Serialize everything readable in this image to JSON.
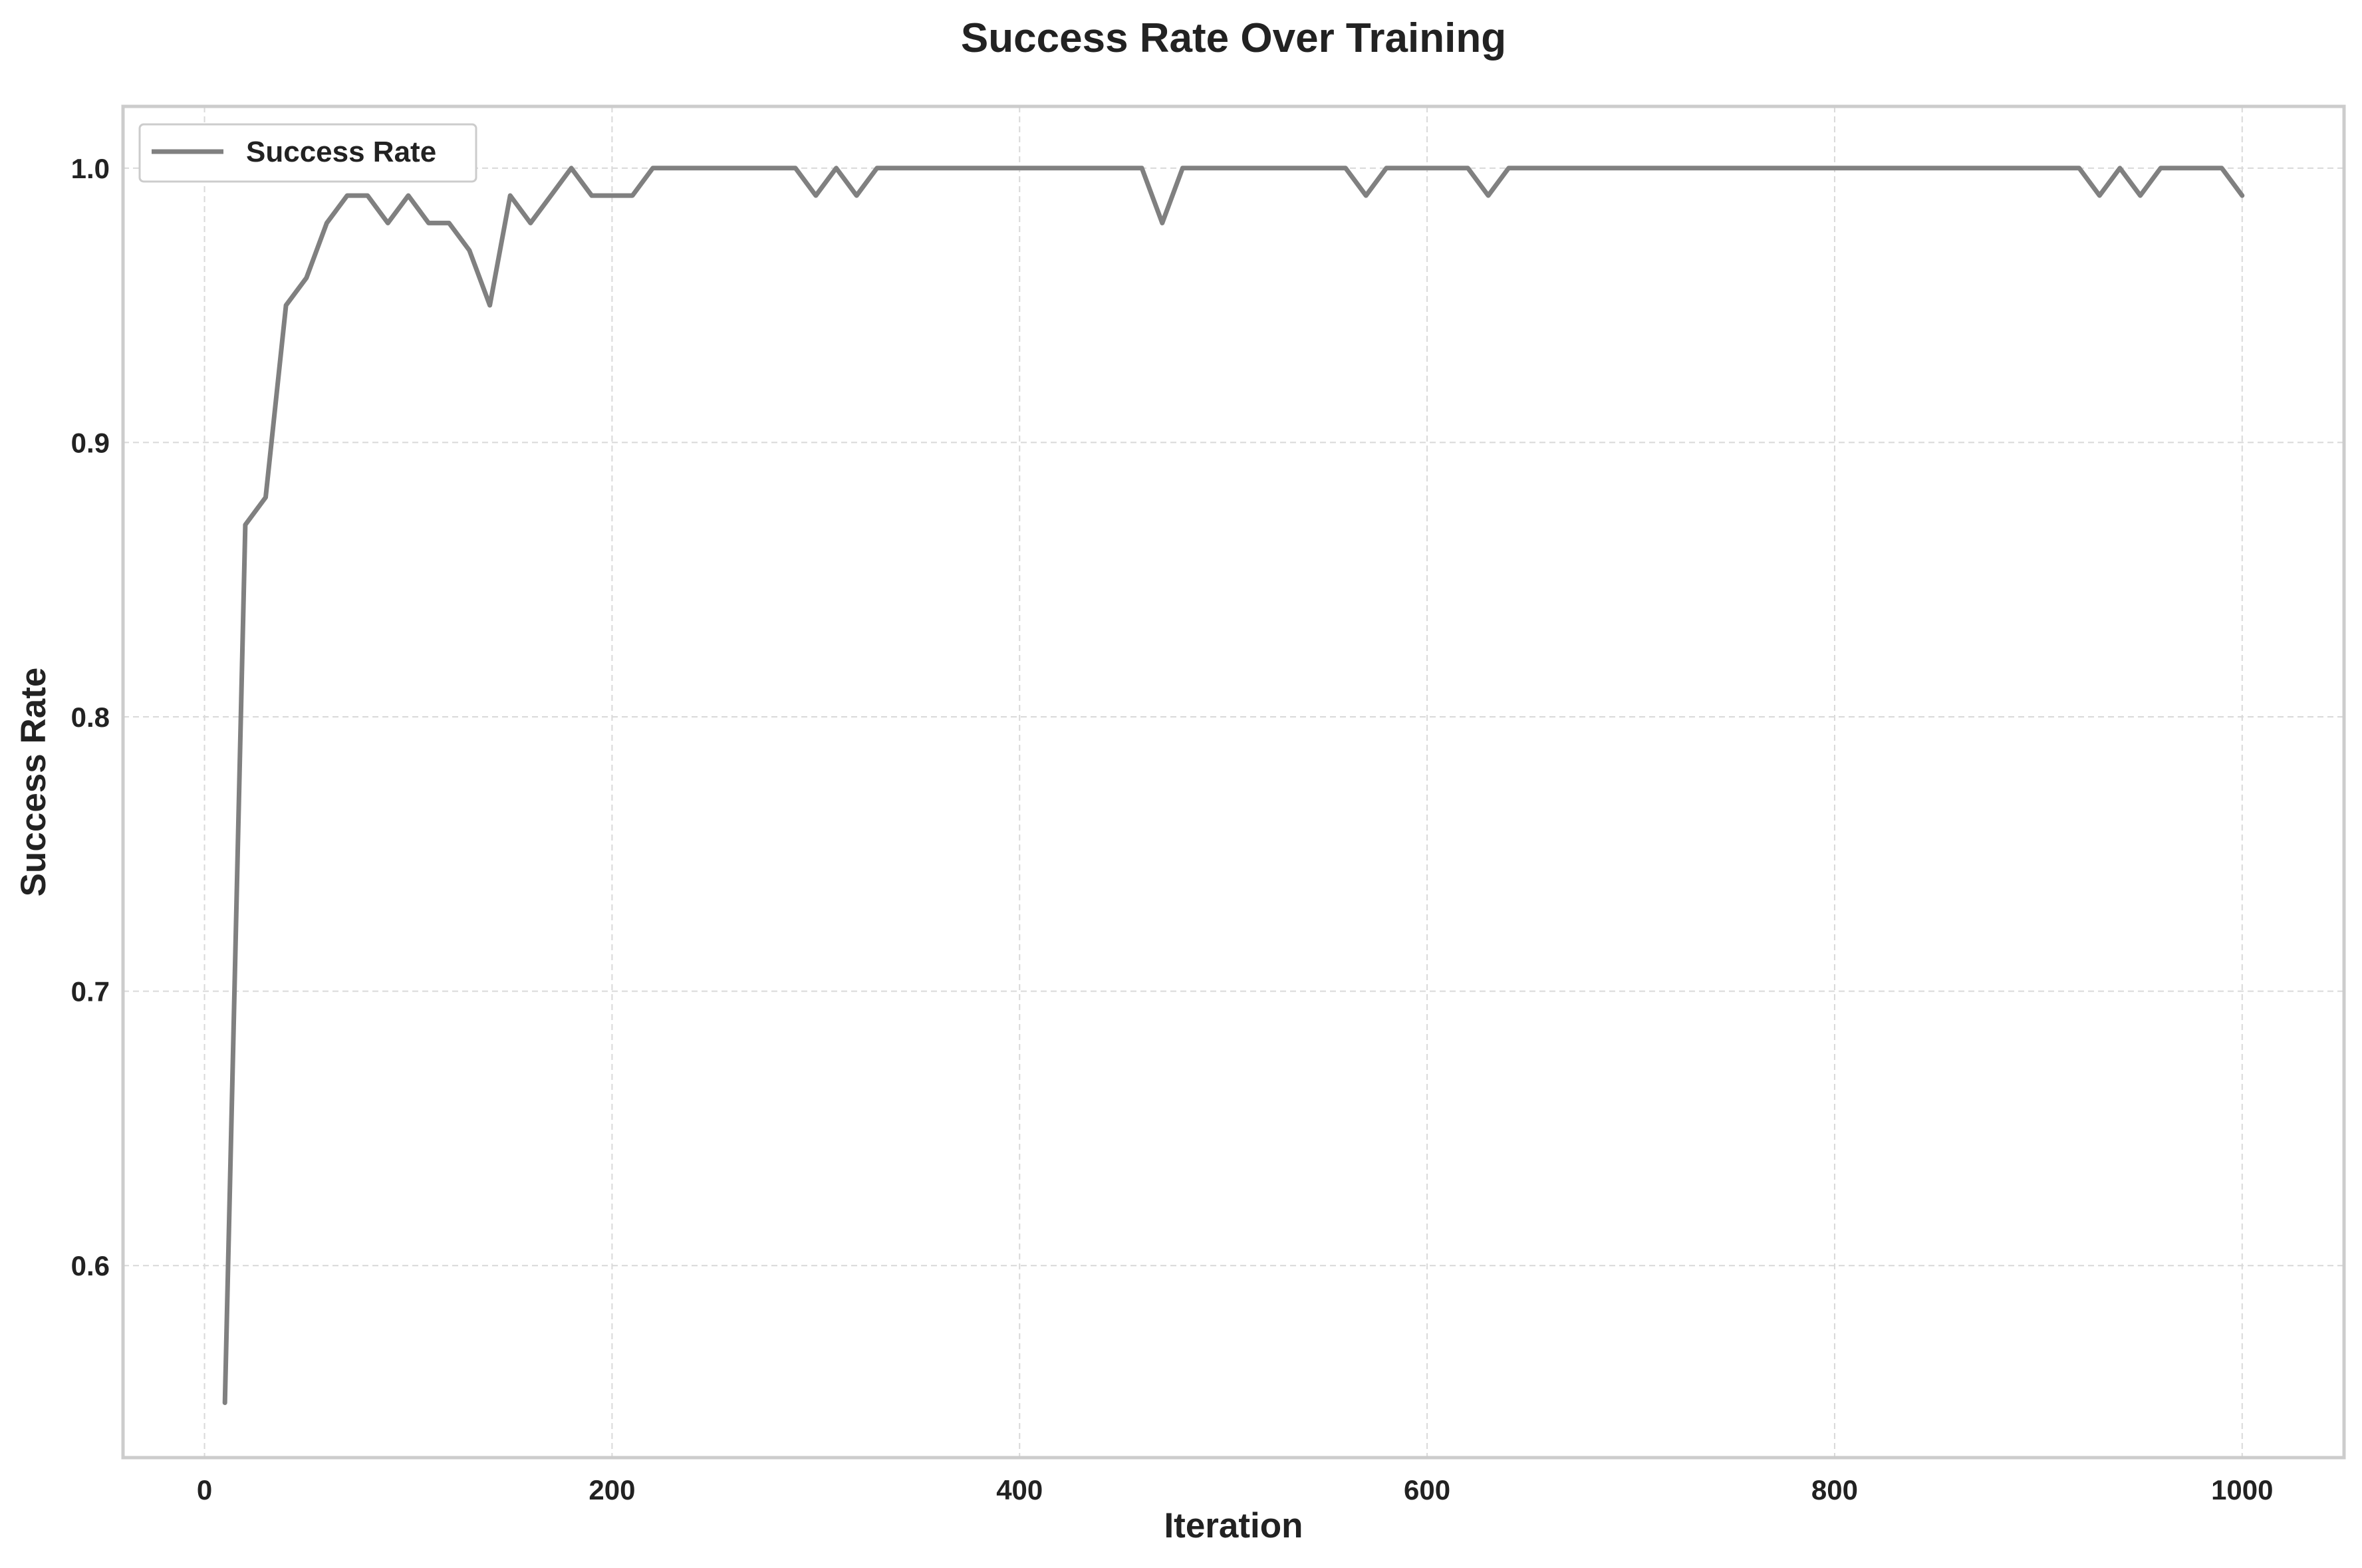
{
  "chart_data": {
    "type": "line",
    "title": "Success Rate Over Training",
    "xlabel": "Iteration",
    "ylabel": "Success Rate",
    "xlim": [
      -40,
      1050
    ],
    "ylim": [
      0.53,
      1.0225
    ],
    "xticks": [
      0,
      200,
      400,
      600,
      800,
      1000
    ],
    "yticks": [
      0.6,
      0.7,
      0.8,
      0.9,
      1.0
    ],
    "xtick_labels": [
      "0",
      "200",
      "400",
      "600",
      "800",
      "1000"
    ],
    "ytick_labels": [
      "0.6",
      "0.7",
      "0.8",
      "0.9",
      "1.0"
    ],
    "grid": true,
    "legend_position": "top-left",
    "colors": {
      "line": "#808080",
      "grid": "#d9d9d9",
      "frame": "#cccccc",
      "text": "#222222"
    },
    "series": [
      {
        "name": "Success Rate",
        "x": [
          10,
          20,
          30,
          40,
          50,
          60,
          70,
          80,
          90,
          100,
          110,
          120,
          130,
          140,
          150,
          160,
          170,
          180,
          190,
          200,
          210,
          220,
          230,
          240,
          250,
          260,
          270,
          280,
          290,
          300,
          310,
          320,
          330,
          340,
          350,
          360,
          370,
          380,
          390,
          400,
          410,
          420,
          430,
          440,
          450,
          460,
          470,
          480,
          490,
          500,
          510,
          520,
          530,
          540,
          550,
          560,
          570,
          580,
          590,
          600,
          610,
          620,
          630,
          640,
          650,
          660,
          670,
          680,
          690,
          700,
          710,
          720,
          730,
          740,
          750,
          760,
          770,
          780,
          790,
          800,
          810,
          820,
          830,
          840,
          850,
          860,
          870,
          880,
          890,
          900,
          910,
          920,
          930,
          940,
          950,
          960,
          970,
          980,
          990,
          1000
        ],
        "values": [
          0.55,
          0.87,
          0.88,
          0.95,
          0.96,
          0.98,
          0.99,
          0.99,
          0.98,
          0.99,
          0.98,
          0.98,
          0.97,
          0.95,
          0.99,
          0.98,
          0.99,
          1.0,
          0.99,
          0.99,
          0.99,
          1.0,
          1.0,
          1.0,
          1.0,
          1.0,
          1.0,
          1.0,
          1.0,
          0.99,
          1.0,
          0.99,
          1.0,
          1.0,
          1.0,
          1.0,
          1.0,
          1.0,
          1.0,
          1.0,
          1.0,
          1.0,
          1.0,
          1.0,
          1.0,
          1.0,
          0.98,
          1.0,
          1.0,
          1.0,
          1.0,
          1.0,
          1.0,
          1.0,
          1.0,
          1.0,
          0.99,
          1.0,
          1.0,
          1.0,
          1.0,
          1.0,
          0.99,
          1.0,
          1.0,
          1.0,
          1.0,
          1.0,
          1.0,
          1.0,
          1.0,
          1.0,
          1.0,
          1.0,
          1.0,
          1.0,
          1.0,
          1.0,
          1.0,
          1.0,
          1.0,
          1.0,
          1.0,
          1.0,
          1.0,
          1.0,
          1.0,
          1.0,
          1.0,
          1.0,
          1.0,
          1.0,
          0.99,
          1.0,
          0.99,
          1.0,
          1.0,
          1.0,
          1.0,
          0.99
        ]
      }
    ]
  }
}
